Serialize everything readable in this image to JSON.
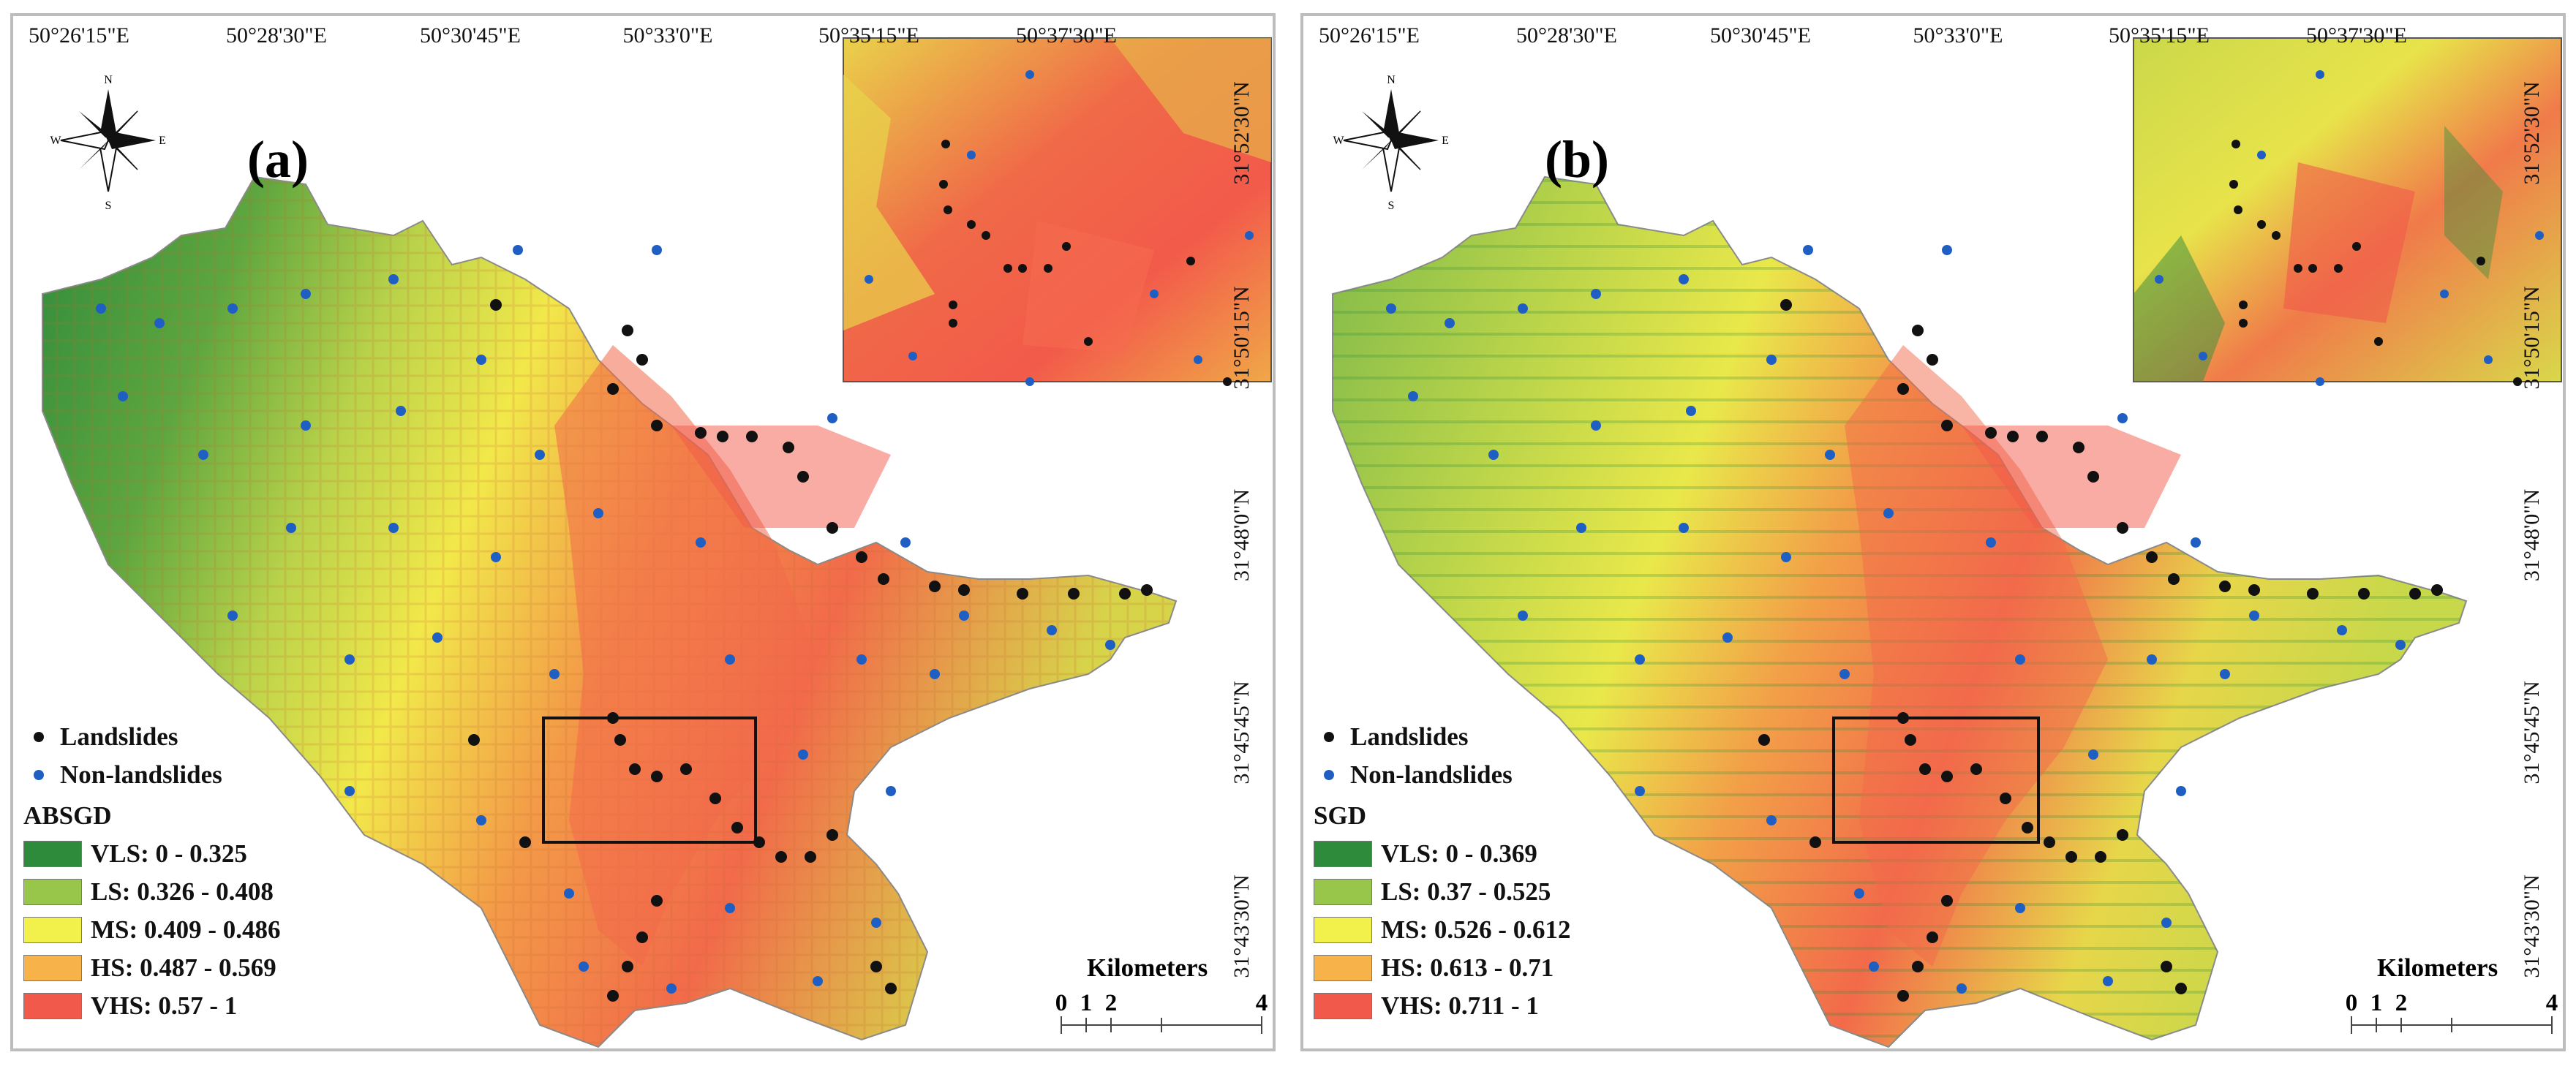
{
  "panels": [
    {
      "label": "(a)",
      "top_labels": [
        "50°26'15\"E",
        "50°28'30\"E",
        "50°30'45\"E",
        "50°33'0\"E",
        "50°35'15\"E",
        "50°37'30\"E"
      ],
      "right_labels": [
        "31°52'30\"N",
        "31°50'15\"N",
        "31°48'0\"N",
        "31°45'45\"N",
        "31°43'30\"N"
      ],
      "legend": {
        "points": [
          {
            "label": "Landslides",
            "color": "#111111"
          },
          {
            "label": "Non-landslides",
            "color": "#1f5fc4"
          }
        ],
        "title": "ABSGD",
        "classes": [
          {
            "label": "VLS: 0 - 0.325",
            "color": "#2f8b3c"
          },
          {
            "label": "LS: 0.326 - 0.408",
            "color": "#98c64a"
          },
          {
            "label": "MS: 0.409 - 0.486",
            "color": "#f2f04a"
          },
          {
            "label": "HS: 0.487 - 0.569",
            "color": "#f7b24a"
          },
          {
            "label": "VHS: 0.57 - 1",
            "color": "#f15a4a"
          }
        ]
      },
      "scale": {
        "title": "Kilometers",
        "ticks": [
          "0",
          "1",
          "2",
          "4"
        ]
      }
    },
    {
      "label": "(b)",
      "top_labels": [
        "50°26'15\"E",
        "50°28'30\"E",
        "50°30'45\"E",
        "50°33'0\"E",
        "50°35'15\"E",
        "50°37'30\"E"
      ],
      "right_labels": [
        "31°52'30\"N",
        "31°50'15\"N",
        "31°48'0\"N",
        "31°45'45\"N",
        "31°43'30\"N"
      ],
      "legend": {
        "points": [
          {
            "label": "Landslides",
            "color": "#111111"
          },
          {
            "label": "Non-landslides",
            "color": "#1f5fc4"
          }
        ],
        "title": "SGD",
        "classes": [
          {
            "label": "VLS: 0 - 0.369",
            "color": "#2f8b3c"
          },
          {
            "label": "LS: 0.37 - 0.525",
            "color": "#98c64a"
          },
          {
            "label": "MS: 0.526 - 0.612",
            "color": "#f2f04a"
          },
          {
            "label": "HS: 0.613 - 0.71",
            "color": "#f7b24a"
          },
          {
            "label": "VHS: 0.711 - 1",
            "color": "#f15a4a"
          }
        ]
      },
      "scale": {
        "title": "Kilometers",
        "ticks": [
          "0",
          "1",
          "2",
          "4"
        ]
      }
    }
  ],
  "compass": {
    "n": "N",
    "s": "S",
    "e": "E",
    "w": "W"
  }
}
